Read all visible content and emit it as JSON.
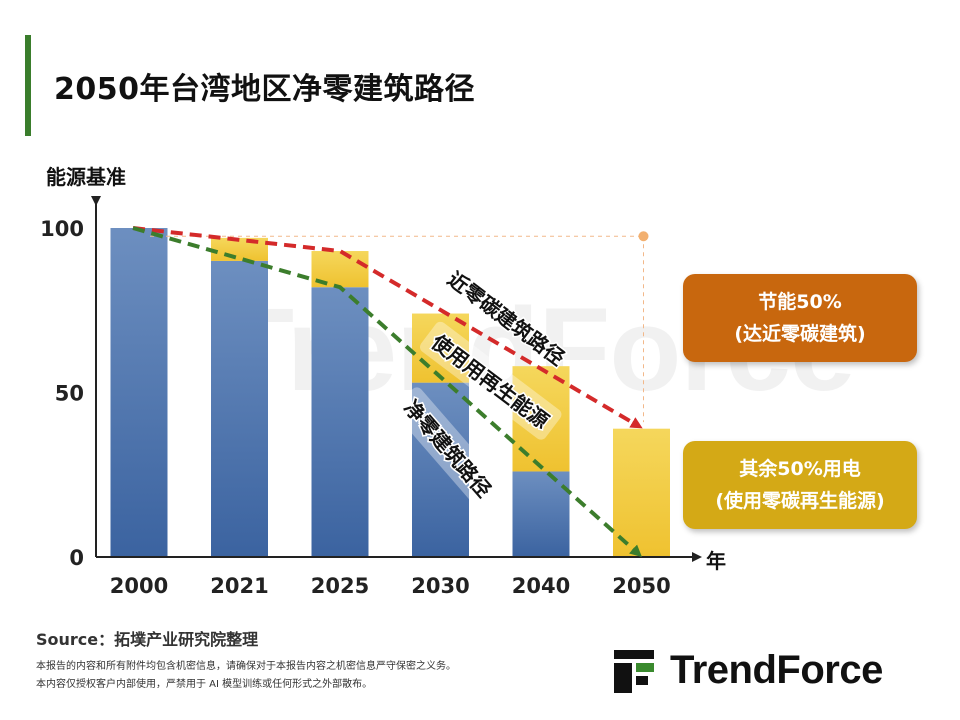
{
  "page": {
    "title": "2050年台湾地区净零建筑路径"
  },
  "colors": {
    "accent": "#3a7d2c",
    "bar_blue": "#3f68a3",
    "bar_yellow": "#f2c93a",
    "red_dash": "#d42a2a",
    "green_dash": "#3c7d2c",
    "callout_orange": "#c8670e",
    "callout_gold": "#d4a916"
  },
  "chart_data": {
    "type": "bar",
    "ylabel": "能源基准",
    "xlabel": "年",
    "ylim": [
      0,
      100
    ],
    "yticks": [
      "100",
      "50",
      "0"
    ],
    "categories": [
      "2000",
      "2021",
      "2025",
      "2030",
      "2040",
      "2050"
    ],
    "series": [
      {
        "values": [
          100,
          90,
          82,
          53,
          26,
          0
        ]
      },
      {
        "values": [
          0,
          7,
          11,
          21,
          32,
          39
        ]
      }
    ],
    "lines": [
      {
        "label": "近零碳建筑路径",
        "style": "dashed",
        "values": [
          100,
          96,
          93,
          null,
          null,
          40
        ]
      },
      {
        "label": "净零建筑路径",
        "style": "dashed",
        "values": [
          100,
          91,
          82,
          null,
          null,
          0
        ]
      }
    ],
    "annotations": {
      "red_path_label": "近零碳建筑路径",
      "renewable_label": "使用用再生能源",
      "green_path_label": "净零建筑路径"
    }
  },
  "callouts": {
    "top_line1": "节能50%",
    "top_line2": "(达近零碳建筑)",
    "bottom_line1": "其余50%用电",
    "bottom_line2": "(使用零碳再生能源)"
  },
  "footer": {
    "source": "Source：拓墣产业研究院整理",
    "disclaimer1": "本报告的内容和所有附件均包含机密信息，请确保对于本报告内容之机密信息严守保密之义务。",
    "disclaimer2": "本内容仅授权客户内部使用，严禁用于 AI 模型训练或任何形式之外部散布。",
    "logo_text": "TrendForce"
  }
}
